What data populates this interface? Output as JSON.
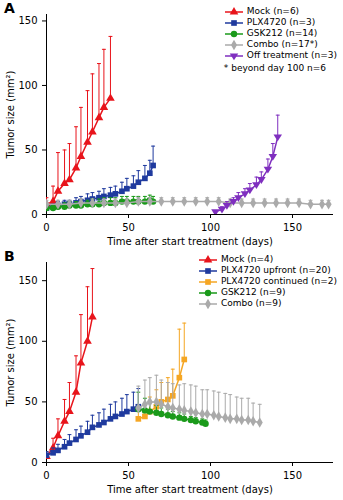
{
  "chart_data": [
    {
      "type": "line",
      "title": "A",
      "x_label": "Time after start treatment (days)",
      "y_label": "Tumor size (mm²)",
      "xlim": [
        0,
        175
      ],
      "xticks": [
        0,
        50,
        100,
        150
      ],
      "ylim": [
        0,
        155
      ],
      "yticks": [
        0,
        50,
        100,
        150
      ],
      "legend": "top-right",
      "annotations": [
        "* beyond day 100 n=6"
      ],
      "series": [
        {
          "name": "Mock (n=6)",
          "color": "#e8141b",
          "marker": "triangle",
          "x": [
            0,
            4,
            7,
            11,
            14,
            18,
            21,
            25,
            28,
            32,
            35,
            39
          ],
          "values": [
            8,
            10,
            18,
            24,
            27,
            36,
            45,
            56,
            64,
            75,
            83,
            90
          ],
          "errors": [
            5,
            12,
            30,
            26,
            28,
            32,
            38,
            40,
            45,
            42,
            45,
            48
          ]
        },
        {
          "name": "PLX4720 (n=3)",
          "color": "#1f3a9e",
          "marker": "square",
          "x": [
            0,
            4,
            7,
            11,
            14,
            18,
            21,
            25,
            28,
            32,
            35,
            39,
            42,
            46,
            49,
            53,
            56,
            60,
            63,
            65
          ],
          "values": [
            5,
            6,
            7,
            8,
            8,
            9,
            10,
            11,
            12,
            13,
            14,
            15,
            16,
            18,
            20,
            22,
            25,
            28,
            32,
            38
          ],
          "errors": [
            2,
            2,
            3,
            3,
            3,
            4,
            4,
            5,
            5,
            5,
            6,
            6,
            6,
            7,
            8,
            8,
            9,
            10,
            10,
            15
          ]
        },
        {
          "name": "GSK212 (n=14)",
          "color": "#1a9a1a",
          "marker": "circle",
          "x": [
            0,
            4,
            7,
            11,
            14,
            18,
            21,
            25,
            28,
            32,
            35,
            39,
            42,
            46,
            49,
            53,
            56,
            60,
            63,
            65
          ],
          "values": [
            5,
            5,
            6,
            6,
            7,
            7,
            7,
            8,
            8,
            8,
            9,
            9,
            9,
            10,
            10,
            10,
            10,
            10,
            11,
            10
          ],
          "errors": [
            2,
            2,
            2,
            3,
            3,
            3,
            3,
            3,
            4,
            4,
            4,
            4,
            4,
            4,
            4,
            4,
            4,
            4,
            4,
            4
          ]
        },
        {
          "name": "Combo (n=17*)",
          "color": "#aaaaaa",
          "marker": "diamond",
          "x": [
            0,
            7,
            14,
            21,
            28,
            35,
            42,
            49,
            56,
            63,
            70,
            77,
            84,
            91,
            98,
            105,
            112,
            119,
            126,
            133,
            140,
            147,
            154,
            161,
            168,
            172
          ],
          "values": [
            8,
            8,
            8,
            9,
            9,
            9,
            9,
            9,
            10,
            10,
            10,
            10,
            10,
            10,
            10,
            10,
            9,
            9,
            9,
            9,
            9,
            9,
            9,
            8,
            8,
            8
          ],
          "errors": [
            3,
            3,
            3,
            3,
            3,
            3,
            3,
            3,
            3,
            3,
            3,
            3,
            3,
            3,
            3,
            3,
            3,
            3,
            3,
            3,
            3,
            3,
            3,
            3,
            3,
            3
          ]
        },
        {
          "name": "Off treatment (n=3)",
          "color": "#7f2fbf",
          "marker": "triangle-down",
          "x": [
            103,
            107,
            110,
            114,
            117,
            121,
            124,
            128,
            131,
            135,
            138,
            141
          ],
          "values": [
            2,
            4,
            7,
            10,
            13,
            16,
            19,
            23,
            27,
            35,
            45,
            60
          ],
          "errors": [
            1,
            2,
            3,
            3,
            4,
            4,
            5,
            6,
            6,
            8,
            10,
            17
          ]
        }
      ]
    },
    {
      "type": "line",
      "title": "B",
      "x_label": "Time after start treatment (days)",
      "y_label": "Tumor size (mm²)",
      "xlim": [
        0,
        175
      ],
      "xticks": [
        0,
        50,
        100,
        150
      ],
      "ylim": [
        0,
        165
      ],
      "yticks": [
        0,
        50,
        100,
        150
      ],
      "legend": "top-right",
      "series": [
        {
          "name": "Mock (n=4)",
          "color": "#e8141b",
          "marker": "triangle",
          "x": [
            0,
            4,
            7,
            11,
            14,
            18,
            21,
            25,
            28
          ],
          "values": [
            5,
            12,
            22,
            34,
            42,
            58,
            82,
            100,
            120
          ],
          "errors": [
            4,
            8,
            14,
            18,
            24,
            30,
            40,
            45,
            40
          ]
        },
        {
          "name": "PLX4720 upfront (n=20)",
          "color": "#1f3a9e",
          "marker": "square",
          "x": [
            0,
            4,
            7,
            11,
            14,
            18,
            21,
            25,
            28,
            32,
            35,
            39,
            42,
            46,
            49,
            53,
            56
          ],
          "values": [
            6,
            8,
            10,
            13,
            16,
            19,
            22,
            25,
            29,
            31,
            33,
            36,
            38,
            40,
            42,
            44,
            46
          ],
          "errors": [
            3,
            4,
            5,
            6,
            7,
            8,
            8,
            9,
            10,
            10,
            11,
            12,
            12,
            13,
            14,
            14,
            15
          ]
        },
        {
          "name": "PLX4720 continued (n=2)",
          "color": "#f5a623",
          "marker": "square",
          "x": [
            56,
            60,
            63,
            67,
            70,
            74,
            77,
            81,
            84
          ],
          "values": [
            36,
            38,
            42,
            46,
            50,
            52,
            55,
            70,
            85
          ],
          "errors": [
            8,
            10,
            12,
            14,
            16,
            18,
            22,
            40,
            30
          ]
        },
        {
          "name": "GSK212 (n=9)",
          "color": "#1a9a1a",
          "marker": "circle",
          "x": [
            56,
            60,
            63,
            67,
            70,
            74,
            77,
            81,
            84,
            88,
            91,
            95,
            97
          ],
          "values": [
            44,
            43,
            42,
            41,
            40,
            39,
            38,
            37,
            36,
            35,
            34,
            33,
            32
          ],
          "errors": [
            14,
            10,
            8,
            6,
            5,
            5,
            4,
            4,
            4,
            3,
            3,
            3,
            3
          ]
        },
        {
          "name": "Combo (n=9)",
          "color": "#aaaaaa",
          "marker": "diamond",
          "x": [
            56,
            60,
            63,
            67,
            70,
            74,
            77,
            81,
            84,
            88,
            91,
            95,
            98,
            102,
            105,
            109,
            112,
            116,
            119,
            123,
            126,
            130
          ],
          "values": [
            45,
            48,
            50,
            50,
            48,
            46,
            45,
            44,
            43,
            42,
            41,
            40,
            40,
            39,
            38,
            37,
            36,
            36,
            35,
            35,
            34,
            33
          ],
          "errors": [
            18,
            20,
            20,
            22,
            20,
            20,
            20,
            20,
            22,
            22,
            22,
            20,
            20,
            20,
            20,
            20,
            20,
            18,
            18,
            18,
            15,
            15
          ]
        }
      ]
    }
  ]
}
